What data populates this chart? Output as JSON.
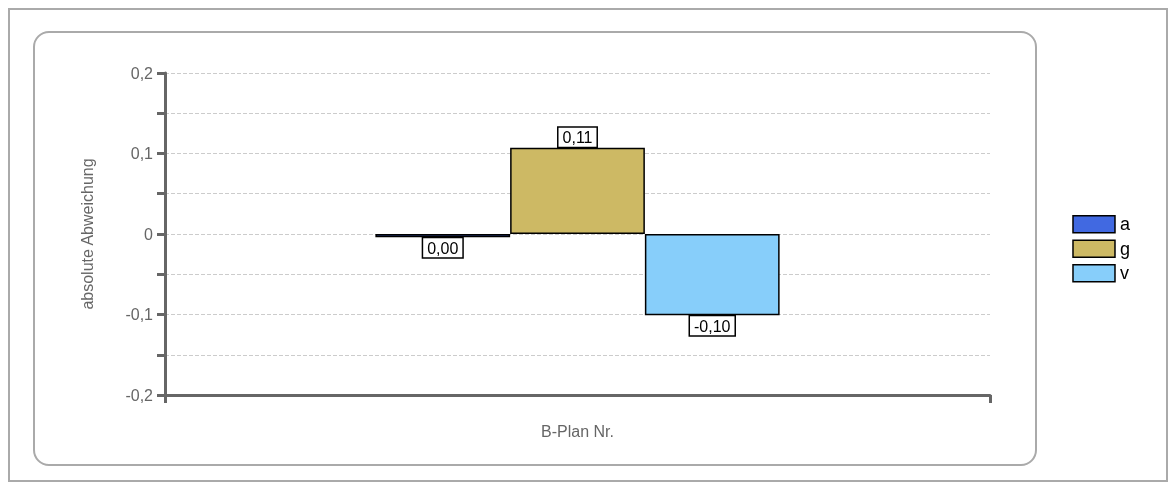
{
  "chart_data": {
    "type": "bar",
    "xlabel": "B-Plan Nr.",
    "ylabel": "absolute Abweichung",
    "categories": [
      null
    ],
    "series": [
      {
        "name": "a",
        "color": "#4169e1",
        "values": [
          -0.004
        ],
        "value_labels": [
          "0,00"
        ]
      },
      {
        "name": "g",
        "color": "#cdb964",
        "values": [
          0.107
        ],
        "value_labels": [
          "0,11"
        ]
      },
      {
        "name": "v",
        "color": "#87cefa",
        "values": [
          -0.101
        ],
        "value_labels": [
          "-0,10"
        ]
      }
    ],
    "ylim": [
      -0.2,
      0.2
    ],
    "yticks": [
      {
        "value": -0.2,
        "label": "-0,2"
      },
      {
        "value": -0.15,
        "label": null
      },
      {
        "value": -0.1,
        "label": "-0,1"
      },
      {
        "value": -0.05,
        "label": null
      },
      {
        "value": 0,
        "label": "0"
      },
      {
        "value": 0.05,
        "label": null
      },
      {
        "value": 0.1,
        "label": "0,1"
      },
      {
        "value": 0.15,
        "label": null
      },
      {
        "value": 0.2,
        "label": "0,2"
      }
    ],
    "grid": "y",
    "legend": "right"
  }
}
